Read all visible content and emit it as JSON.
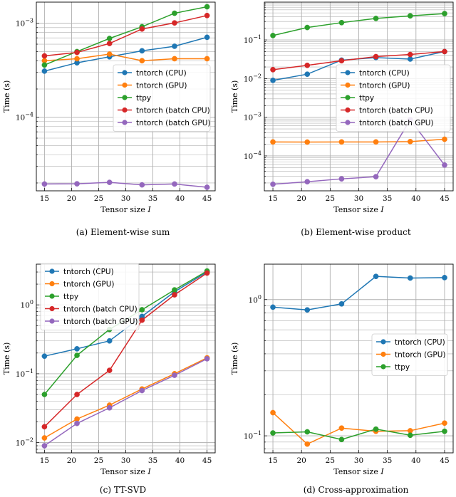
{
  "colors": {
    "tntorch_cpu": "#1f77b4",
    "tntorch_gpu": "#ff7f0e",
    "ttpy": "#2ca02c",
    "batch_cpu": "#d62728",
    "batch_gpu": "#9467bd",
    "grid": "#b0b0b0"
  },
  "chart_data": [
    {
      "id": "a",
      "type": "line",
      "caption": "(a) Element-wise sum",
      "xlabel": "Tensor size ",
      "xlabel_var": "I",
      "ylabel": "Time (s)",
      "yscale": "log",
      "xlim": [
        13.5,
        46.5
      ],
      "ylim": [
        1.65e-05,
        0.00168
      ],
      "xticks": [
        15,
        20,
        25,
        30,
        35,
        40,
        45
      ],
      "yticks": [
        {
          "value": 0.0001,
          "base": "10",
          "exp": "−4"
        },
        {
          "value": 0.001,
          "base": "10",
          "exp": "−3"
        }
      ],
      "legend_position": "center-right",
      "x": [
        15,
        21,
        27,
        33,
        39,
        45
      ],
      "series": [
        {
          "name": "tntorch (CPU)",
          "color": "#1f77b4",
          "values": [
            0.00031,
            0.00038,
            0.00044,
            0.00051,
            0.00057,
            0.00071
          ]
        },
        {
          "name": "tntorch (GPU)",
          "color": "#ff7f0e",
          "values": [
            0.0004,
            0.00042,
            0.00047,
            0.0004,
            0.00042,
            0.00042
          ]
        },
        {
          "name": "ttpy",
          "color": "#2ca02c",
          "values": [
            0.00036,
            0.0005,
            0.00069,
            0.00092,
            0.00128,
            0.0015
          ]
        },
        {
          "name": "tntorch (batch CPU)",
          "color": "#d62728",
          "values": [
            0.00045,
            0.00049,
            0.00061,
            0.00087,
            0.00101,
            0.00121
          ]
        },
        {
          "name": "tntorch (batch GPU)",
          "color": "#9467bd",
          "values": [
            1.95e-05,
            1.96e-05,
            2.03e-05,
            1.91e-05,
            1.95e-05,
            1.8e-05
          ]
        }
      ]
    },
    {
      "id": "b",
      "type": "line",
      "caption": "(b) Element-wise product",
      "xlabel": "Tensor size ",
      "xlabel_var": "I",
      "ylabel": "Time (s)",
      "yscale": "log",
      "xlim": [
        13.5,
        46.5
      ],
      "ylim": [
        1.25e-05,
        0.95
      ],
      "xticks": [
        15,
        20,
        25,
        30,
        35,
        40,
        45
      ],
      "yticks": [
        {
          "value": 0.0001,
          "base": "10",
          "exp": "−4"
        },
        {
          "value": 0.001,
          "base": "10",
          "exp": "−3"
        },
        {
          "value": 0.01,
          "base": "10",
          "exp": "−2"
        },
        {
          "value": 0.1,
          "base": "10",
          "exp": "−1"
        }
      ],
      "legend_position": "center-right",
      "x": [
        15,
        21,
        27,
        33,
        39,
        45
      ],
      "series": [
        {
          "name": "tntorch (CPU)",
          "color": "#1f77b4",
          "values": [
            0.009,
            0.013,
            0.03,
            0.035,
            0.032,
            0.05
          ]
        },
        {
          "name": "tntorch (GPU)",
          "color": "#ff7f0e",
          "values": [
            0.00023,
            0.000228,
            0.00023,
            0.00023,
            0.000235,
            0.00027
          ]
        },
        {
          "name": "ttpy",
          "color": "#2ca02c",
          "values": [
            0.13,
            0.21,
            0.28,
            0.36,
            0.42,
            0.48
          ]
        },
        {
          "name": "tntorch (batch CPU)",
          "color": "#d62728",
          "values": [
            0.017,
            0.022,
            0.029,
            0.037,
            0.042,
            0.05
          ]
        },
        {
          "name": "tntorch (batch GPU)",
          "color": "#9467bd",
          "values": [
            1.85e-05,
            2.15e-05,
            2.55e-05,
            2.9e-05,
            0.00086,
            5.8e-05
          ]
        }
      ]
    },
    {
      "id": "c",
      "type": "line",
      "caption": "(c) TT-SVD",
      "xlabel": "Tensor size ",
      "xlabel_var": "I",
      "ylabel": "Time (s)",
      "yscale": "log",
      "xlim": [
        13.5,
        46.5
      ],
      "ylim": [
        0.0071,
        3.9
      ],
      "xticks": [
        15,
        20,
        25,
        30,
        35,
        40,
        45
      ],
      "yticks": [
        {
          "value": 0.01,
          "base": "10",
          "exp": "−2"
        },
        {
          "value": 0.1,
          "base": "10",
          "exp": "−1"
        },
        {
          "value": 1,
          "base": "10",
          "exp": "0"
        }
      ],
      "legend_position": "top-left",
      "x": [
        15,
        21,
        27,
        33,
        39,
        45
      ],
      "series": [
        {
          "name": "tntorch (CPU)",
          "color": "#1f77b4",
          "values": [
            0.18,
            0.23,
            0.3,
            0.68,
            1.55,
            3.0
          ]
        },
        {
          "name": "tntorch (GPU)",
          "color": "#ff7f0e",
          "values": [
            0.0117,
            0.022,
            0.035,
            0.06,
            0.1,
            0.17
          ]
        },
        {
          "name": "ttpy",
          "color": "#2ca02c",
          "values": [
            0.05,
            0.185,
            0.44,
            0.85,
            1.65,
            3.1
          ]
        },
        {
          "name": "tntorch (batch CPU)",
          "color": "#d62728",
          "values": [
            0.017,
            0.05,
            0.112,
            0.6,
            1.4,
            2.9
          ]
        },
        {
          "name": "tntorch (batch GPU)",
          "color": "#9467bd",
          "values": [
            0.009,
            0.019,
            0.032,
            0.057,
            0.095,
            0.165
          ]
        }
      ]
    },
    {
      "id": "d",
      "type": "line",
      "caption": "(d) Cross-approximation",
      "xlabel": "Tensor size ",
      "xlabel_var": "I",
      "ylabel": "Time (s)",
      "yscale": "log",
      "xlim": [
        13.5,
        46.5
      ],
      "ylim": [
        0.075,
        1.82
      ],
      "xticks": [
        15,
        20,
        25,
        30,
        35,
        40,
        45
      ],
      "yticks": [
        {
          "value": 0.1,
          "base": "10",
          "exp": "−1"
        },
        {
          "value": 1,
          "base": "10",
          "exp": "0"
        }
      ],
      "legend_position": "center-right",
      "x": [
        15,
        21,
        27,
        33,
        39,
        45
      ],
      "series": [
        {
          "name": "tntorch (CPU)",
          "color": "#1f77b4",
          "values": [
            0.88,
            0.84,
            0.93,
            1.48,
            1.44,
            1.45
          ]
        },
        {
          "name": "tntorch (GPU)",
          "color": "#ff7f0e",
          "values": [
            0.148,
            0.087,
            0.114,
            0.108,
            0.109,
            0.124
          ]
        },
        {
          "name": "ttpy",
          "color": "#2ca02c",
          "values": [
            0.105,
            0.107,
            0.094,
            0.112,
            0.101,
            0.108
          ]
        }
      ]
    }
  ]
}
